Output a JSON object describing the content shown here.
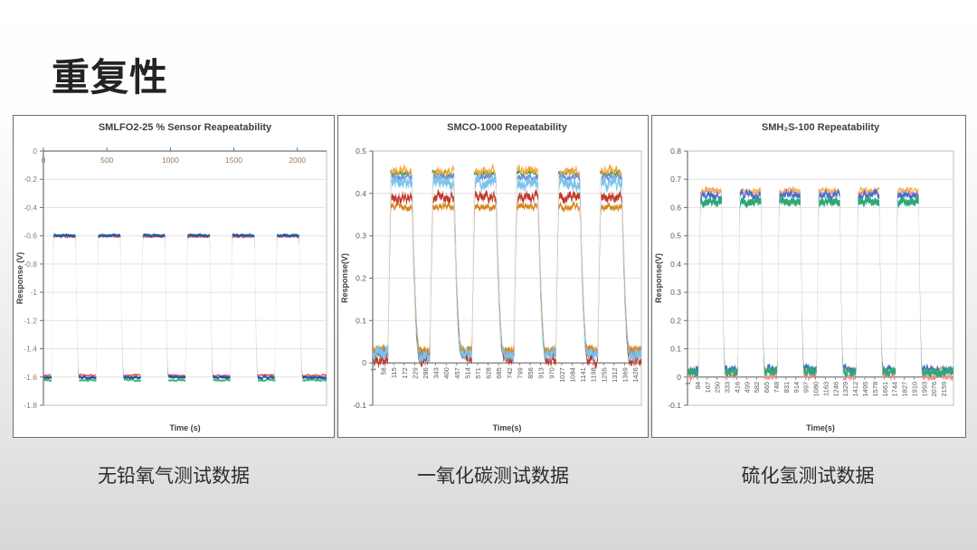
{
  "slide": {
    "title": "重复性"
  },
  "captions": [
    {
      "text": "无铅氧气测试数据"
    },
    {
      "text": "一氧化碳测试数据"
    },
    {
      "text": "硫化氢测试数据"
    }
  ],
  "colors": {
    "slide_bg_top": "#ffffff",
    "slide_bg_bottom": "#d8d8d8",
    "panel_bg": "#ffffff",
    "panel_border": "#6e6e6e",
    "chart_title": "#3f4044",
    "axis_line": "#707070",
    "frame": "#c0c0c0",
    "grid": "#e2e2e2",
    "axis_label": "#3f3f3f"
  },
  "chart_data": [
    {
      "type": "line",
      "title": "SMLFO2-25 % Sensor Reapeatability",
      "xlabel": "Time (s)",
      "ylabel": "Response (V)",
      "xlim": [
        0,
        2230
      ],
      "ylim": [
        -1.8,
        0
      ],
      "yticks": [
        0,
        -0.2,
        -0.4,
        -0.6,
        -0.8,
        -1,
        -1.2,
        -1.4,
        -1.6,
        -1.8
      ],
      "xticks": [
        0,
        500,
        1000,
        1500,
        2000
      ],
      "xtick_rotation": 0,
      "xaxis_cross": 0,
      "tick_color": "#9b7a5e",
      "pulses": {
        "first_rise": 65,
        "period": 352,
        "on": 190,
        "rise_w": 14,
        "fall_w": 26,
        "count": 6
      },
      "series": [
        {
          "name": "run-green",
          "color": "#33b575",
          "low": -1.622,
          "high": -0.6,
          "band": 0.014,
          "noise": 0.005,
          "shift": -2
        },
        {
          "name": "run-red",
          "color": "#e2574c",
          "low": -1.588,
          "high": -0.605,
          "band": 0.012,
          "noise": 0.005,
          "shift": 3
        },
        {
          "name": "run-blue",
          "color": "#2553a8",
          "low": -1.603,
          "high": -0.598,
          "band": 0.018,
          "noise": 0.006,
          "shift": 0
        }
      ]
    },
    {
      "type": "line",
      "title": "SMCO-1000 Repeatability",
      "xlabel": "Time(s)",
      "ylabel": "Response(V)",
      "xlim": [
        1,
        1460
      ],
      "ylim": [
        -0.1,
        0.5
      ],
      "yticks": [
        0.5,
        0.4,
        0.3,
        0.2,
        0.1,
        0,
        -0.1
      ],
      "xticks": [
        1,
        58,
        115,
        172,
        229,
        286,
        343,
        400,
        457,
        514,
        571,
        628,
        685,
        742,
        799,
        856,
        913,
        970,
        1027,
        1084,
        1141,
        1198,
        1255,
        1312,
        1369,
        1426
      ],
      "xtick_rotation": -90,
      "xaxis_cross": 0,
      "tick_color": "#595959",
      "pulses": {
        "first_rise": 85,
        "period": 228,
        "on": 130,
        "rise_w": 16,
        "fall_w": 42,
        "count": 6
      },
      "series": [
        {
          "name": "run-green",
          "color": "#2f9e4f",
          "low": 0.02,
          "high": 0.448,
          "band": 0.007,
          "noise": 0.004,
          "shift": 6
        },
        {
          "name": "run-orange",
          "color": "#f3a83b",
          "low": 0.028,
          "high": 0.452,
          "band": 0.012,
          "noise": 0.008,
          "shift": 1
        },
        {
          "name": "run-cornflower",
          "color": "#6d8ed6",
          "low": 0.022,
          "high": 0.438,
          "band": 0.01,
          "noise": 0.006,
          "shift": -1
        },
        {
          "name": "run-darkorange",
          "color": "#d6861f",
          "low": 0.03,
          "high": 0.368,
          "band": 0.01,
          "noise": 0.006,
          "shift": 2
        },
        {
          "name": "run-darkred",
          "color": "#bf3a2b",
          "low": 0.006,
          "high": 0.392,
          "band": 0.014,
          "noise": 0.009,
          "shift": 0
        },
        {
          "name": "run-skyblue",
          "color": "#7cc4ec",
          "low": 0.02,
          "high": 0.424,
          "band": 0.017,
          "noise": 0.01,
          "shift": 0
        }
      ]
    },
    {
      "type": "line",
      "title": "SMH₂S-100 Repeatability",
      "xlabel": "Time(s)",
      "ylabel": "Response(V)",
      "xlim": [
        1,
        2242
      ],
      "ylim": [
        -0.1,
        0.8
      ],
      "yticks": [
        0.8,
        0.7,
        0.6,
        0.5,
        0.4,
        0.3,
        0.2,
        0.1,
        0,
        -0.1
      ],
      "xticks": [
        1,
        84,
        167,
        250,
        333,
        416,
        499,
        582,
        665,
        748,
        831,
        914,
        997,
        1080,
        1163,
        1246,
        1329,
        1412,
        1495,
        1578,
        1661,
        1744,
        1827,
        1910,
        1993,
        2076,
        2159
      ],
      "xtick_rotation": -90,
      "xaxis_cross": 0,
      "tick_color": "#595959",
      "pulses": {
        "first_rise": 95,
        "period": 332,
        "on": 195,
        "rise_w": 15,
        "fall_w": 30,
        "count": 6
      },
      "series": [
        {
          "name": "run-salmon",
          "color": "#ef8f93",
          "low": 0.002,
          "high": 0.652,
          "band": 0.014,
          "noise": 0.009,
          "shift": 3
        },
        {
          "name": "run-orange",
          "color": "#f4b653",
          "low": 0.025,
          "high": 0.66,
          "band": 0.01,
          "noise": 0.008,
          "shift": -2
        },
        {
          "name": "run-blue",
          "color": "#3e6ed4",
          "low": 0.028,
          "high": 0.645,
          "band": 0.016,
          "noise": 0.01,
          "shift": 1
        },
        {
          "name": "run-green",
          "color": "#2ea876",
          "low": 0.018,
          "high": 0.62,
          "band": 0.022,
          "noise": 0.008,
          "shift": 0
        }
      ]
    }
  ]
}
